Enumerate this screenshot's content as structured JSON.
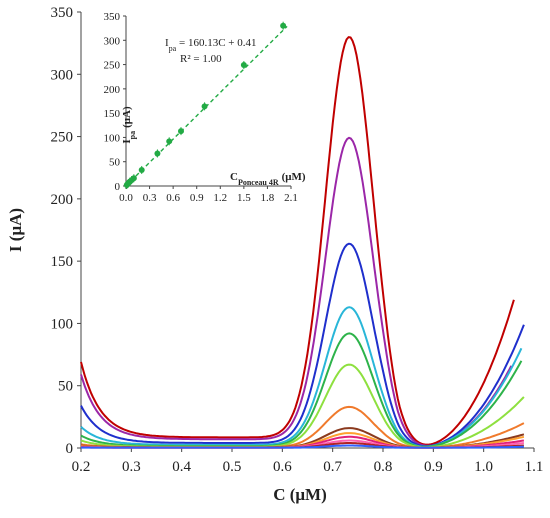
{
  "chart_data": [
    {
      "type": "line",
      "xlabel_main": "C",
      "xlabel_unit": "(μM)",
      "ylabel_main": "I",
      "ylabel_unit": "(μA)",
      "xlim": [
        0.2,
        1.1
      ],
      "ylim": [
        0,
        350
      ],
      "x_ticks": [
        "0.2",
        "0.3",
        "0.4",
        "0.5",
        "0.6",
        "0.7",
        "0.8",
        "0.9",
        "1.0",
        "1.1"
      ],
      "y_ticks": [
        "0",
        "50",
        "100",
        "150",
        "200",
        "250",
        "300",
        "350"
      ],
      "grid": false,
      "series": [
        {
          "color": "#c00000",
          "peak": 330,
          "left": 69,
          "base": 8.5,
          "tail": 120,
          "x_end": 1.06
        },
        {
          "color": "#9b27a8",
          "peak": 249,
          "left": 59,
          "base": 7.0,
          "tail": 67,
          "x_end": 1.055
        },
        {
          "color": "#1f2fcc",
          "peak": 164,
          "left": 34,
          "base": 4.0,
          "tail": 100,
          "x_end": 1.08
        },
        {
          "color": "#29b6d8",
          "peak": 113,
          "left": 17,
          "base": 2.5,
          "tail": 81,
          "x_end": 1.075
        },
        {
          "color": "#2db34a",
          "peak": 92,
          "left": 10,
          "base": 1.5,
          "tail": 71,
          "x_end": 1.075
        },
        {
          "color": "#8ee03f",
          "peak": 67,
          "left": 6,
          "base": 1.0,
          "tail": 42,
          "x_end": 1.08
        },
        {
          "color": "#f07a2c",
          "peak": 33,
          "left": 3,
          "base": 0.6,
          "tail": 21,
          "x_end": 1.08
        },
        {
          "color": "#8b3a1e",
          "peak": 16,
          "left": 2,
          "base": 0.4,
          "tail": 12,
          "x_end": 1.08
        },
        {
          "color": "#ffa030",
          "peak": 12,
          "left": 1.5,
          "base": 0.3,
          "tail": 10,
          "x_end": 1.08
        },
        {
          "color": "#e0207a",
          "peak": 9,
          "left": 1,
          "base": 0.2,
          "tail": 7,
          "x_end": 1.08
        },
        {
          "color": "#ff5fb0",
          "peak": 6,
          "left": 0.8,
          "base": 0.2,
          "tail": 5,
          "x_end": 1.08
        },
        {
          "color": "#b22222",
          "peak": 4,
          "left": 0.5,
          "base": 0.1,
          "tail": 3,
          "x_end": 1.08
        },
        {
          "color": "#3060ff",
          "peak": 2,
          "left": 0.3,
          "base": 0.1,
          "tail": 2,
          "x_end": 1.08
        }
      ]
    },
    {
      "type": "scatter",
      "xlabel_main": "C",
      "xlabel_sub": "Ponceau 4R",
      "xlabel_unit": "(μM)",
      "ylabel_main": "I",
      "ylabel_sub": "pa",
      "ylabel_unit": "(μA)",
      "equation_main": "I",
      "equation_sub": "pa",
      "equation_rest": " = 160.13C + 0.41",
      "r2": "R² = 1.00",
      "xlim": [
        0,
        2.1
      ],
      "ylim": [
        0,
        350
      ],
      "x_ticks": [
        "0.0",
        "0.3",
        "0.6",
        "0.9",
        "1.2",
        "1.5",
        "1.8",
        "2.1"
      ],
      "y_ticks": [
        "0",
        "50",
        "100",
        "150",
        "200",
        "250",
        "300",
        "350"
      ],
      "fit": {
        "slope": 160.13,
        "intercept": 0.41
      },
      "color": "#22aa44",
      "points": [
        {
          "x": 0.01,
          "y": 2
        },
        {
          "x": 0.02,
          "y": 4
        },
        {
          "x": 0.03,
          "y": 6
        },
        {
          "x": 0.05,
          "y": 9
        },
        {
          "x": 0.07,
          "y": 12
        },
        {
          "x": 0.1,
          "y": 16
        },
        {
          "x": 0.2,
          "y": 33
        },
        {
          "x": 0.4,
          "y": 67
        },
        {
          "x": 0.55,
          "y": 92
        },
        {
          "x": 0.7,
          "y": 113
        },
        {
          "x": 1.0,
          "y": 164
        },
        {
          "x": 1.5,
          "y": 249
        },
        {
          "x": 2.0,
          "y": 330
        }
      ]
    }
  ]
}
